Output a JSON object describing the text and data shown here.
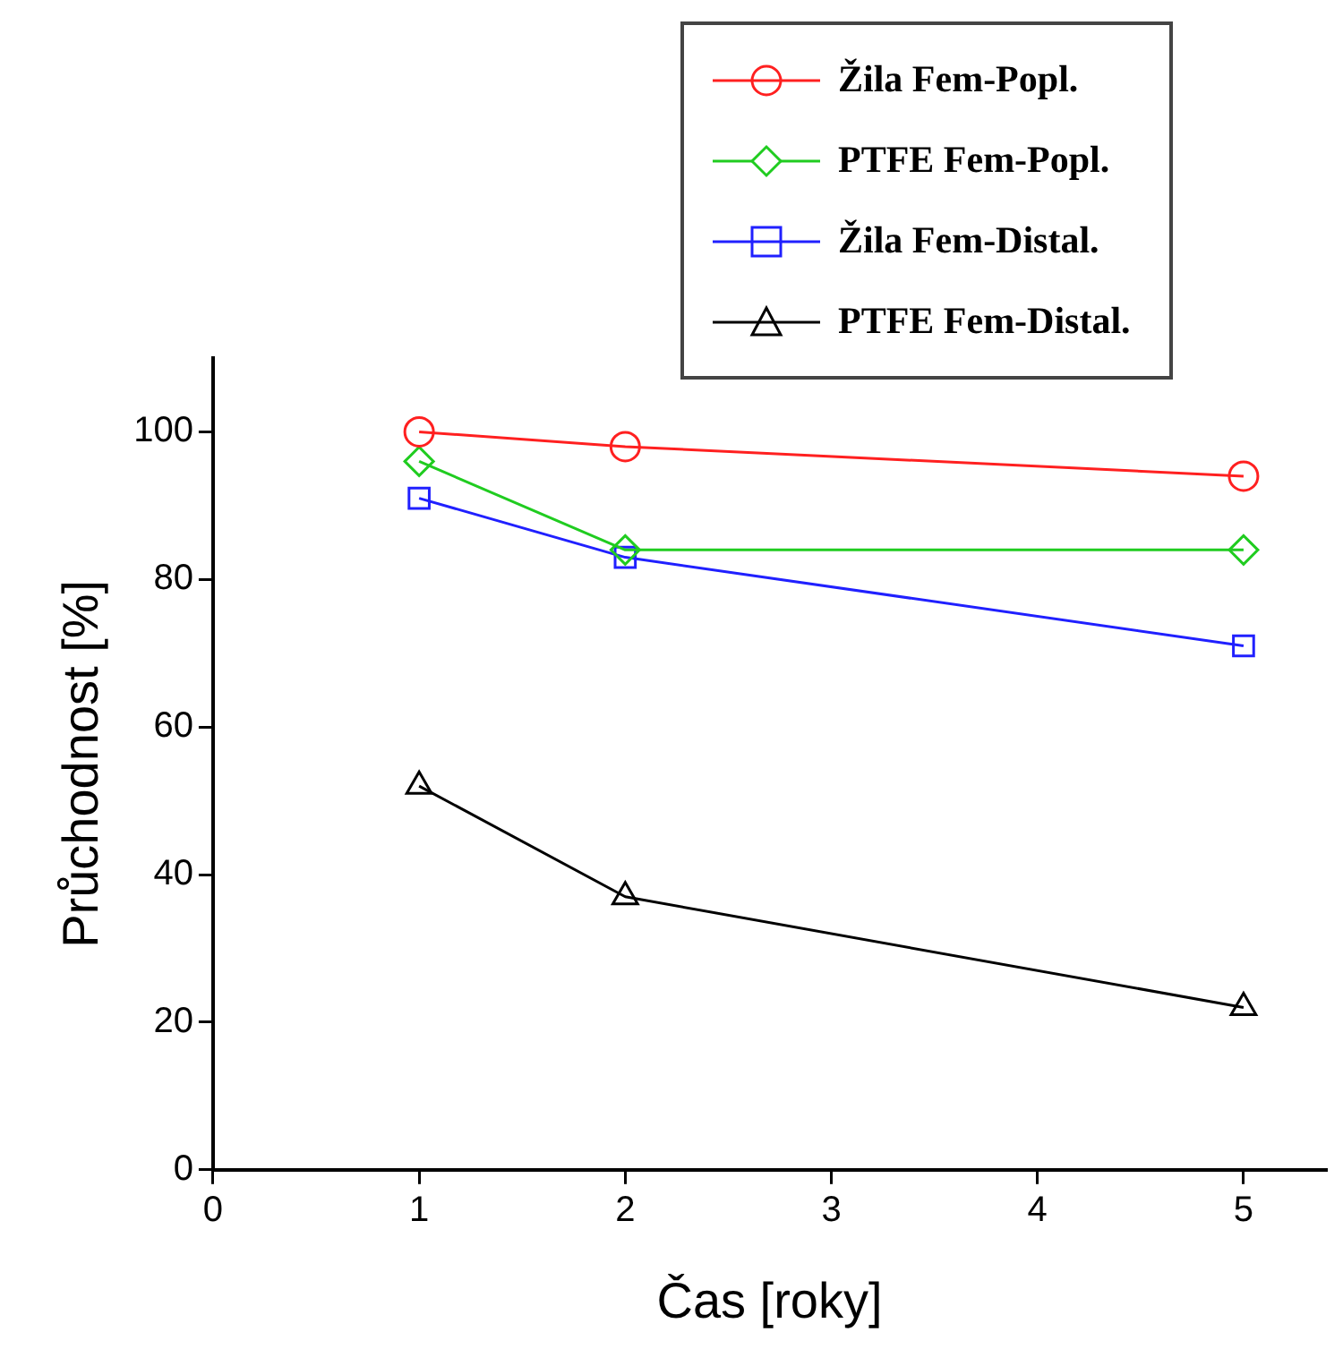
{
  "chart_data": {
    "type": "line",
    "xlabel": "Čas [roky]",
    "ylabel": "Průchodnost [%]",
    "xlim": [
      0,
      5.4
    ],
    "xticks": [
      0,
      1,
      2,
      3,
      4,
      5
    ],
    "ylim": [
      0,
      110
    ],
    "yticks": [
      0,
      20,
      40,
      60,
      80,
      100
    ],
    "grid": false,
    "legend": "top right",
    "series": [
      {
        "name": "Žila Fem-Popl.",
        "color": "#ff2020",
        "marker": "circle",
        "x": [
          1,
          2,
          5
        ],
        "values": [
          100,
          98,
          94
        ]
      },
      {
        "name": "PTFE Fem-Popl.",
        "color": "#20cc20",
        "marker": "diamond",
        "x": [
          1,
          2,
          5
        ],
        "values": [
          96,
          84,
          84
        ]
      },
      {
        "name": "Žila Fem-Distal.",
        "color": "#2020ff",
        "marker": "square",
        "x": [
          1,
          2,
          5
        ],
        "values": [
          91,
          83,
          71
        ]
      },
      {
        "name": "PTFE Fem-Distal.",
        "color": "#000000",
        "marker": "triangle",
        "x": [
          1,
          2,
          5
        ],
        "values": [
          52,
          37,
          22
        ]
      }
    ]
  }
}
